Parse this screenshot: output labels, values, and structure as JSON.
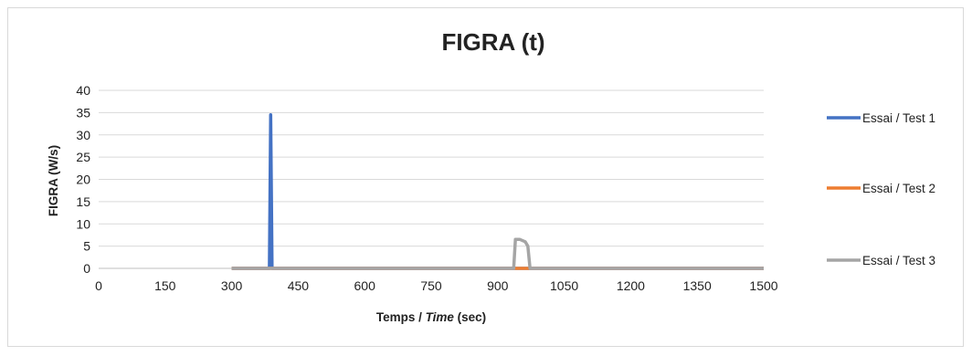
{
  "chart_data": {
    "type": "line",
    "title": "FIGRA (t)",
    "ylabel": "FIGRA (W/s)",
    "xlabel_plain": "Temps / ",
    "xlabel_italic": "Time",
    "xlabel_suffix": " (sec)",
    "xlim": [
      0,
      1500
    ],
    "ylim": [
      0,
      40
    ],
    "xticks": [
      0,
      150,
      300,
      450,
      600,
      750,
      900,
      1050,
      1200,
      1350,
      1500
    ],
    "yticks": [
      0,
      5,
      10,
      15,
      20,
      25,
      30,
      35,
      40
    ],
    "grid": "horizontal",
    "legend_position": "right",
    "series": [
      {
        "name": "Essai / Test 1",
        "color": "#4472c4",
        "points": [
          [
            300,
            0
          ],
          [
            385,
            0
          ],
          [
            388,
            34.5
          ],
          [
            391,
            0
          ],
          [
            1500,
            0
          ]
        ]
      },
      {
        "name": "Essai / Test 2",
        "color": "#ed7d31",
        "points": [
          [
            300,
            0
          ],
          [
            1500,
            0
          ]
        ]
      },
      {
        "name": "Essai / Test 3",
        "color": "#a5a5a5",
        "points": [
          [
            300,
            0
          ],
          [
            936,
            0
          ],
          [
            940,
            6.5
          ],
          [
            950,
            6.5
          ],
          [
            962,
            6.0
          ],
          [
            968,
            5.0
          ],
          [
            973,
            0
          ],
          [
            1500,
            0
          ]
        ]
      }
    ]
  }
}
